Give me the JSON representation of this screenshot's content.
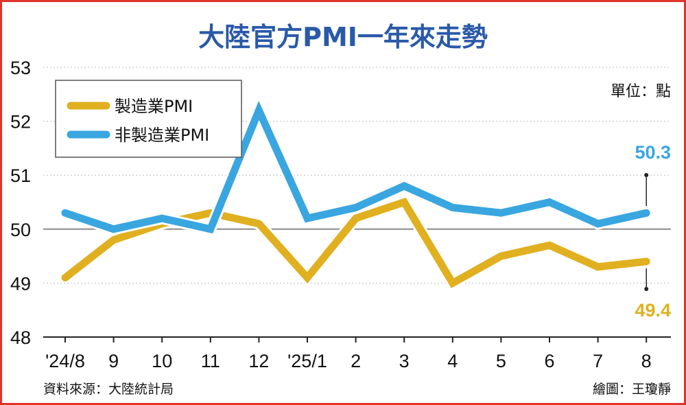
{
  "chart_data": {
    "type": "line",
    "title": "大陸官方PMI一年來走勢",
    "unit_label": "單位：點",
    "source": "資料來源：大陸統計局",
    "credit": "繪圖：王瓊靜",
    "categories": [
      "'24/8",
      "9",
      "10",
      "11",
      "12",
      "'25/1",
      "2",
      "3",
      "4",
      "5",
      "6",
      "7",
      "8"
    ],
    "ylim": [
      48,
      53
    ],
    "yticks": [
      "48",
      "49",
      "50",
      "51",
      "52",
      "53"
    ],
    "grid": true,
    "legend_position": "top-left",
    "series": [
      {
        "name": "製造業PMI",
        "color": "#e0b020",
        "values": [
          49.1,
          49.8,
          50.1,
          50.3,
          50.1,
          49.1,
          50.2,
          50.5,
          49.0,
          49.5,
          49.7,
          49.3,
          49.4
        ],
        "end_label": "49.4"
      },
      {
        "name": "非製造業PMI",
        "color": "#3aa6e0",
        "values": [
          50.3,
          50.0,
          50.2,
          50.0,
          52.2,
          50.2,
          50.4,
          50.8,
          50.4,
          50.3,
          50.5,
          50.1,
          50.3
        ],
        "end_label": "50.3"
      }
    ],
    "title_color": "#2a59a8",
    "frame_color": "#e0342a"
  }
}
